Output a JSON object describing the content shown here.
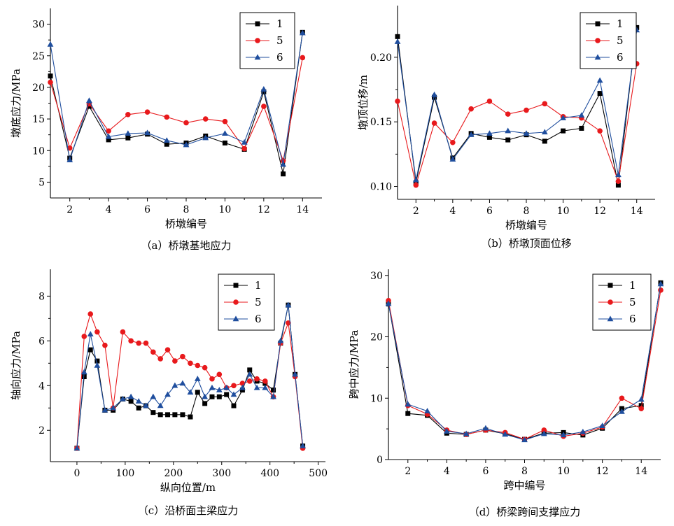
{
  "chart_data": [
    {
      "type": "line",
      "caption": "（a）桥墩基地应力",
      "xlabel": "桥墩编号",
      "ylabel": "墩底应力/MPa",
      "xlim": [
        1,
        15
      ],
      "ylim": [
        2.5,
        32.5
      ],
      "xticks": [
        2,
        4,
        6,
        8,
        10,
        12,
        14
      ],
      "yticks": [
        5,
        10,
        15,
        20,
        25,
        30
      ],
      "ytick_labels": [
        "5",
        "10",
        "15",
        "20",
        "25",
        "30"
      ],
      "legend_position": "top-right",
      "x": [
        1,
        2,
        3,
        4,
        5,
        6,
        7,
        8,
        9,
        10,
        11,
        12,
        13,
        14
      ],
      "series": [
        {
          "name": "1",
          "color": "#000000",
          "marker": "square",
          "values": [
            21.8,
            8.8,
            17.0,
            11.7,
            12.0,
            12.6,
            11.0,
            11.2,
            12.3,
            11.2,
            10.2,
            19.3,
            6.3,
            28.7
          ]
        },
        {
          "name": "5",
          "color": "#e8191c",
          "marker": "circle",
          "values": [
            20.8,
            10.4,
            17.4,
            13.1,
            15.7,
            16.1,
            15.3,
            14.4,
            15.0,
            14.6,
            10.3,
            17.0,
            8.4,
            24.7
          ]
        },
        {
          "name": "6",
          "color": "#1f4e9e",
          "marker": "triangle",
          "values": [
            26.8,
            8.5,
            17.9,
            12.2,
            12.7,
            12.8,
            11.6,
            10.9,
            12.0,
            12.7,
            11.3,
            19.7,
            7.8,
            28.6
          ]
        }
      ]
    },
    {
      "type": "line",
      "caption": "（b）桥墩顶面位移",
      "xlabel": "桥墩编号",
      "ylabel": "墩顶位移/m",
      "xlim": [
        1,
        15
      ],
      "ylim": [
        0.09,
        0.24
      ],
      "xticks": [
        2,
        4,
        6,
        8,
        10,
        12,
        14
      ],
      "yticks": [
        0.1,
        0.15,
        0.2
      ],
      "ytick_labels": [
        "0.10",
        "0.15",
        "0.20"
      ],
      "legend_position": "top-right",
      "x": [
        1,
        2,
        3,
        4,
        5,
        6,
        7,
        8,
        9,
        10,
        11,
        12,
        13,
        14
      ],
      "series": [
        {
          "name": "1",
          "color": "#000000",
          "marker": "square",
          "values": [
            0.216,
            0.103,
            0.169,
            0.122,
            0.141,
            0.138,
            0.136,
            0.14,
            0.135,
            0.143,
            0.145,
            0.172,
            0.101,
            0.223
          ]
        },
        {
          "name": "5",
          "color": "#e8191c",
          "marker": "circle",
          "values": [
            0.166,
            0.101,
            0.149,
            0.134,
            0.16,
            0.166,
            0.156,
            0.159,
            0.164,
            0.154,
            0.153,
            0.143,
            0.104,
            0.195
          ]
        },
        {
          "name": "6",
          "color": "#1f4e9e",
          "marker": "triangle",
          "values": [
            0.212,
            0.105,
            0.171,
            0.121,
            0.14,
            0.141,
            0.143,
            0.141,
            0.142,
            0.153,
            0.155,
            0.182,
            0.109,
            0.221
          ]
        }
      ]
    },
    {
      "type": "line",
      "caption": "（c）沿桥面主梁应力",
      "xlabel": "纵向位置/m",
      "ylabel": "轴向应力/MPa",
      "xlim": [
        -55,
        515
      ],
      "ylim": [
        0.6,
        9.2
      ],
      "xticks": [
        0,
        100,
        200,
        300,
        400,
        500
      ],
      "yticks": [
        2,
        4,
        6,
        8
      ],
      "ytick_labels": [
        "2",
        "4",
        "6",
        "8"
      ],
      "legend_position": "top-right",
      "x": [
        0,
        15,
        28,
        42,
        58,
        75,
        95,
        112,
        128,
        143,
        158,
        173,
        188,
        203,
        219,
        235,
        250,
        265,
        280,
        295,
        310,
        325,
        343,
        358,
        373,
        390,
        407,
        422,
        438,
        452,
        468
      ],
      "series": [
        {
          "name": "1",
          "color": "#000000",
          "marker": "square",
          "values": [
            1.2,
            4.4,
            5.6,
            5.1,
            2.9,
            2.9,
            3.4,
            3.3,
            3.0,
            3.1,
            2.8,
            2.7,
            2.7,
            2.7,
            2.7,
            2.6,
            3.7,
            3.2,
            3.5,
            3.5,
            3.6,
            3.1,
            3.8,
            4.7,
            4.2,
            4.1,
            3.8,
            5.9,
            7.6,
            4.5,
            1.3
          ]
        },
        {
          "name": "5",
          "color": "#e8191c",
          "marker": "circle",
          "values": [
            1.2,
            6.2,
            7.2,
            6.4,
            5.8,
            3.0,
            6.4,
            6.0,
            5.9,
            5.9,
            5.5,
            5.2,
            5.6,
            5.1,
            5.3,
            5.0,
            4.9,
            4.8,
            4.3,
            4.5,
            3.9,
            4.0,
            4.1,
            4.2,
            4.3,
            4.2,
            3.5,
            5.9,
            6.8,
            4.4,
            1.2
          ]
        },
        {
          "name": "6",
          "color": "#1f4e9e",
          "marker": "triangle",
          "values": [
            1.2,
            4.6,
            6.3,
            4.9,
            2.9,
            3.0,
            3.4,
            3.5,
            3.3,
            3.1,
            3.5,
            3.1,
            3.6,
            4.0,
            4.1,
            3.7,
            4.3,
            3.5,
            3.9,
            3.8,
            3.9,
            3.6,
            3.9,
            4.5,
            3.9,
            3.9,
            3.5,
            6.0,
            7.6,
            4.5,
            1.3
          ]
        }
      ]
    },
    {
      "type": "line",
      "caption": "（d）桥梁跨间支撑应力",
      "xlabel": "跨中编号",
      "ylabel": "跨中应力/MPa",
      "xlim": [
        1,
        15
      ],
      "ylim": [
        0,
        31
      ],
      "xticks": [
        2,
        4,
        6,
        8,
        10,
        12,
        14
      ],
      "yticks": [
        0,
        10,
        20,
        30
      ],
      "ytick_labels": [
        "0",
        "10",
        "20",
        "30"
      ],
      "legend_position": "top-right",
      "x": [
        1,
        2,
        3,
        4,
        5,
        6,
        7,
        8,
        9,
        10,
        11,
        12,
        13,
        14,
        15
      ],
      "series": [
        {
          "name": "1",
          "color": "#000000",
          "marker": "square",
          "values": [
            25.5,
            7.5,
            7.2,
            4.3,
            4.1,
            4.8,
            4.2,
            3.3,
            4.3,
            4.4,
            4.0,
            5.1,
            8.3,
            8.8,
            28.8
          ]
        },
        {
          "name": "5",
          "color": "#e8191c",
          "marker": "circle",
          "values": [
            25.9,
            8.8,
            7.4,
            4.8,
            4.1,
            4.8,
            4.4,
            3.3,
            4.8,
            3.8,
            4.3,
            5.3,
            10.0,
            8.3,
            27.6
          ]
        },
        {
          "name": "6",
          "color": "#1f4e9e",
          "marker": "triangle",
          "values": [
            25.4,
            9.0,
            7.9,
            4.6,
            4.2,
            5.1,
            4.1,
            3.2,
            4.2,
            4.0,
            4.5,
            5.5,
            7.8,
            9.8,
            28.6
          ]
        }
      ]
    }
  ]
}
